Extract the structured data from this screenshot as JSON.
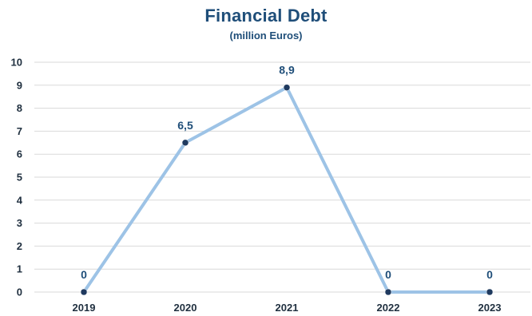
{
  "chart_data": {
    "type": "line",
    "title": "Financial Debt",
    "subtitle": "(million Euros)",
    "xlabel": "",
    "ylabel": "",
    "categories": [
      "2019",
      "2020",
      "2021",
      "2022",
      "2023"
    ],
    "series": [
      {
        "values": [
          0,
          6.5,
          8.9,
          0,
          0
        ],
        "data_labels": [
          "0",
          "6,5",
          "8,9",
          "0",
          "0"
        ]
      }
    ],
    "ylim": [
      0,
      10
    ],
    "y_ticks": [
      "0",
      "1",
      "2",
      "3",
      "4",
      "5",
      "6",
      "7",
      "8",
      "9",
      "10"
    ],
    "grid": true,
    "legend": "none",
    "colors": {
      "line": "#9dc3e6",
      "marker": "#1f3a5f",
      "title": "#1f4e79",
      "grid": "#d9d9d9"
    }
  }
}
